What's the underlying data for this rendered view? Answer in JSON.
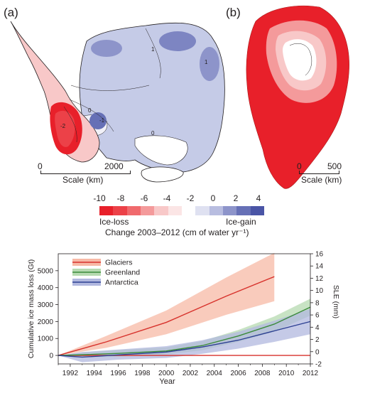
{
  "maps": {
    "a": {
      "label": "(a)",
      "scale_start": "0",
      "scale_end": "2000",
      "scale_unit": "Scale (km)",
      "contour_labels": [
        "1",
        "1",
        "0",
        "-1",
        "0",
        "-2"
      ]
    },
    "b": {
      "label": "(b)",
      "scale_start": "0",
      "scale_end": "500",
      "scale_unit": "Scale (km)"
    }
  },
  "colorbar": {
    "ticks": [
      "-10",
      "-8",
      "-6",
      "-4",
      "-2",
      "0",
      "2",
      "4"
    ],
    "colors": [
      "#e8202a",
      "#ec4148",
      "#f06a6d",
      "#f49a9b",
      "#f8c8c8",
      "#fbe5e5",
      "#ffffff",
      "#dfe1f1",
      "#b8bde0",
      "#8d94ca",
      "#6670b6",
      "#4a55a6"
    ],
    "loss_label": "Ice-loss",
    "gain_label": "Ice-gain",
    "title": "Change 2003–2012 (cm of water yr⁻¹)"
  },
  "chart_data": {
    "type": "line",
    "xlabel": "Year",
    "ylabel": "Cumulative ice mass loss (Gt)",
    "y2label": "SLE (mm)",
    "xlim": [
      1991,
      2012
    ],
    "ylim": [
      -500,
      6000
    ],
    "y2lim": [
      -2,
      16
    ],
    "xticks": [
      1992,
      1994,
      1996,
      1998,
      2000,
      2002,
      2004,
      2006,
      2008,
      2010,
      2012
    ],
    "yticks": [
      0,
      1000,
      2000,
      3000,
      4000,
      5000
    ],
    "y2ticks": [
      -2,
      0,
      2,
      4,
      6,
      8,
      10,
      12,
      14,
      16
    ],
    "legend_position": "top-left",
    "series": [
      {
        "name": "Glaciers",
        "color": "#d7312b",
        "band_color": "#f7b9a6",
        "x": [
          1991,
          1995,
          2000,
          2005,
          2009
        ],
        "values": [
          0,
          800,
          1950,
          3500,
          4650
        ],
        "lower": [
          0,
          450,
          1250,
          2400,
          3200
        ],
        "upper": [
          0,
          1150,
          2650,
          4600,
          6050
        ]
      },
      {
        "name": "Greenland",
        "color": "#3a8a3a",
        "band_color": "#b6dab0",
        "x": [
          1991,
          1993,
          1996,
          2000,
          2003,
          2006,
          2009,
          2012
        ],
        "values": [
          0,
          40,
          120,
          260,
          580,
          1150,
          1850,
          2850
        ],
        "lower": [
          0,
          -100,
          -80,
          60,
          300,
          800,
          1400,
          2350
        ],
        "upper": [
          0,
          180,
          320,
          480,
          850,
          1500,
          2300,
          3350
        ]
      },
      {
        "name": "Antarctica",
        "color": "#2c3f92",
        "band_color": "#b1b8df",
        "x": [
          1991,
          1993,
          1996,
          2000,
          2003,
          2006,
          2009,
          2012
        ],
        "values": [
          0,
          -100,
          30,
          200,
          500,
          900,
          1450,
          2000
        ],
        "lower": [
          0,
          -400,
          -250,
          -150,
          100,
          400,
          800,
          1250
        ],
        "upper": [
          0,
          200,
          350,
          550,
          900,
          1400,
          2050,
          2750
        ]
      }
    ],
    "zero_line": {
      "color": "#d7312b"
    }
  }
}
